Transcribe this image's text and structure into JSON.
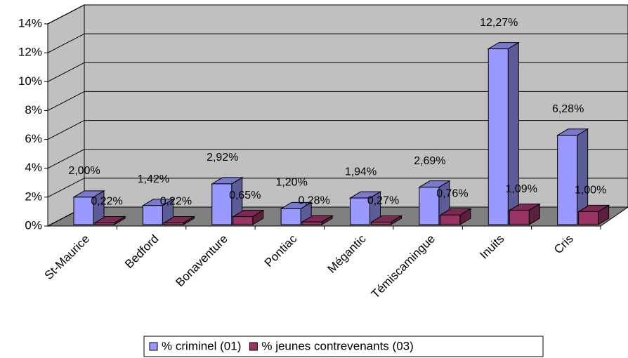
{
  "chart_data": {
    "type": "bar3d",
    "categories": [
      "St-Maurice",
      "Bedford",
      "Bonaventure",
      "Pontiac",
      "Mégantic",
      "Témiscamingue",
      "Inuits",
      "Cris"
    ],
    "series": [
      {
        "name": "% criminel (01)",
        "color": "#9999ff",
        "values": [
          2.0,
          1.42,
          2.92,
          1.2,
          1.94,
          2.69,
          12.27,
          6.28
        ],
        "value_labels": [
          "2,00%",
          "1,42%",
          "2,92%",
          "1,20%",
          "1,94%",
          "2,69%",
          "12,27%",
          "6,28%"
        ]
      },
      {
        "name": "% jeunes contrevenants (03)",
        "color": "#993366",
        "values": [
          0.22,
          0.22,
          0.65,
          0.28,
          0.27,
          0.76,
          1.09,
          1.0
        ],
        "value_labels": [
          "0,22%",
          "0,22%",
          "0,65%",
          "0,28%",
          "0,27%",
          "0,76%",
          "1,09%",
          "1,00%"
        ]
      }
    ],
    "ylim": [
      0,
      14
    ],
    "yticks": [
      {
        "value": 0,
        "label": "0%"
      },
      {
        "value": 2,
        "label": "2%"
      },
      {
        "value": 4,
        "label": "4%"
      },
      {
        "value": 6,
        "label": "6%"
      },
      {
        "value": 8,
        "label": "8%"
      },
      {
        "value": 10,
        "label": "10%"
      },
      {
        "value": 12,
        "label": "12%"
      },
      {
        "value": 14,
        "label": "14%"
      }
    ],
    "grid": true,
    "legend": "bottom"
  }
}
